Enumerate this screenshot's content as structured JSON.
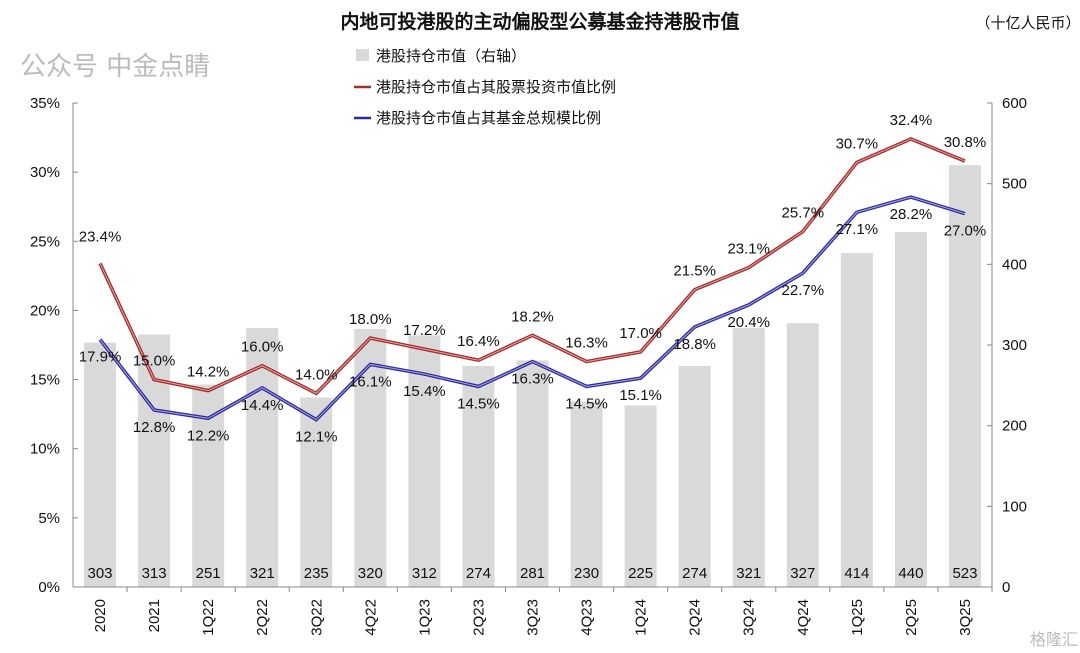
{
  "chart_data": {
    "type": "bar+line",
    "title": "内地可投港股的主动偏股型公募基金持港股市值",
    "unit_label": "（十亿人民币）",
    "categories": [
      "2020",
      "2021",
      "1Q22",
      "2Q22",
      "3Q22",
      "4Q22",
      "1Q23",
      "2Q23",
      "3Q23",
      "4Q23",
      "1Q24",
      "2Q24",
      "3Q24",
      "4Q24",
      "1Q25",
      "2Q25",
      "3Q25"
    ],
    "bar_series": {
      "name": "港股持仓市值（右轴）",
      "axis": "right",
      "color": "#d9d9d9",
      "values": [
        303,
        313,
        251,
        321,
        235,
        320,
        312,
        274,
        281,
        230,
        225,
        274,
        321,
        327,
        414,
        440,
        523
      ]
    },
    "series": [
      {
        "name": "港股持仓市值占其股票投资市值比例",
        "axis": "left",
        "color": "#a52a2a",
        "values": [
          23.4,
          15.0,
          14.2,
          16.0,
          14.0,
          18.0,
          17.2,
          16.4,
          18.2,
          16.3,
          17.0,
          21.5,
          23.1,
          25.7,
          30.7,
          32.4,
          30.8
        ]
      },
      {
        "name": "港股持仓市值占其基金总规模比例",
        "axis": "left",
        "color": "#2b2b9e",
        "values": [
          17.9,
          12.8,
          12.2,
          14.4,
          12.1,
          16.1,
          15.4,
          14.5,
          16.3,
          14.5,
          15.1,
          18.8,
          20.4,
          22.7,
          27.1,
          28.2,
          27.0
        ]
      }
    ],
    "left_axis": {
      "ylim": [
        0,
        35
      ],
      "ticks": [
        "0%",
        "5%",
        "10%",
        "15%",
        "20%",
        "25%",
        "30%",
        "35%"
      ]
    },
    "right_axis": {
      "ylim": [
        0,
        600
      ],
      "ticks": [
        "0",
        "100",
        "200",
        "300",
        "400",
        "500",
        "600"
      ]
    },
    "grid": false,
    "legend_placement": "top-center"
  },
  "watermarks": [
    "公众号 中金点睛",
    "格隆汇"
  ]
}
